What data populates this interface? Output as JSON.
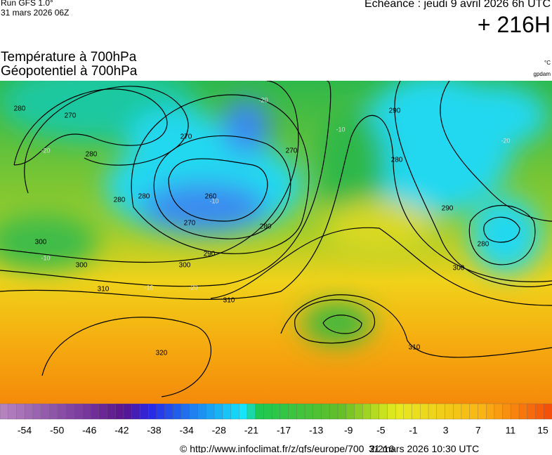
{
  "header": {
    "run": "Run GFS 1.0°",
    "run_date": "31 mars 2026 06Z",
    "echeance": "Echéance : jeudi 9 avril 2026 6h UTC",
    "lead": "+ 216H",
    "title_temp": "Température à 700hPa",
    "title_geo": "Géopotentiel à 700hPa",
    "unit_temp": "°C",
    "unit_geo": "gpdam"
  },
  "map": {
    "contour_labels": [
      280,
      270,
      280,
      280,
      270,
      260,
      280,
      270,
      280,
      290,
      300,
      300,
      300,
      310,
      310,
      320,
      270,
      290,
      280,
      290,
      280,
      300,
      310
    ],
    "temperature_labels": [
      -20,
      -10,
      -20,
      -10,
      -20,
      -10,
      -20,
      -10
    ]
  },
  "colorbar": {
    "labels": [
      -54,
      -50,
      -46,
      -42,
      -38,
      -34,
      -28,
      -21,
      -17,
      -13,
      -9,
      -5,
      -1,
      3,
      7,
      11,
      15
    ]
  },
  "footer": {
    "url": "© http://www.infoclimat.fr/z/gfs/europe/700_2/216",
    "timestamp": "31 mars 2026 10:30 UTC"
  }
}
